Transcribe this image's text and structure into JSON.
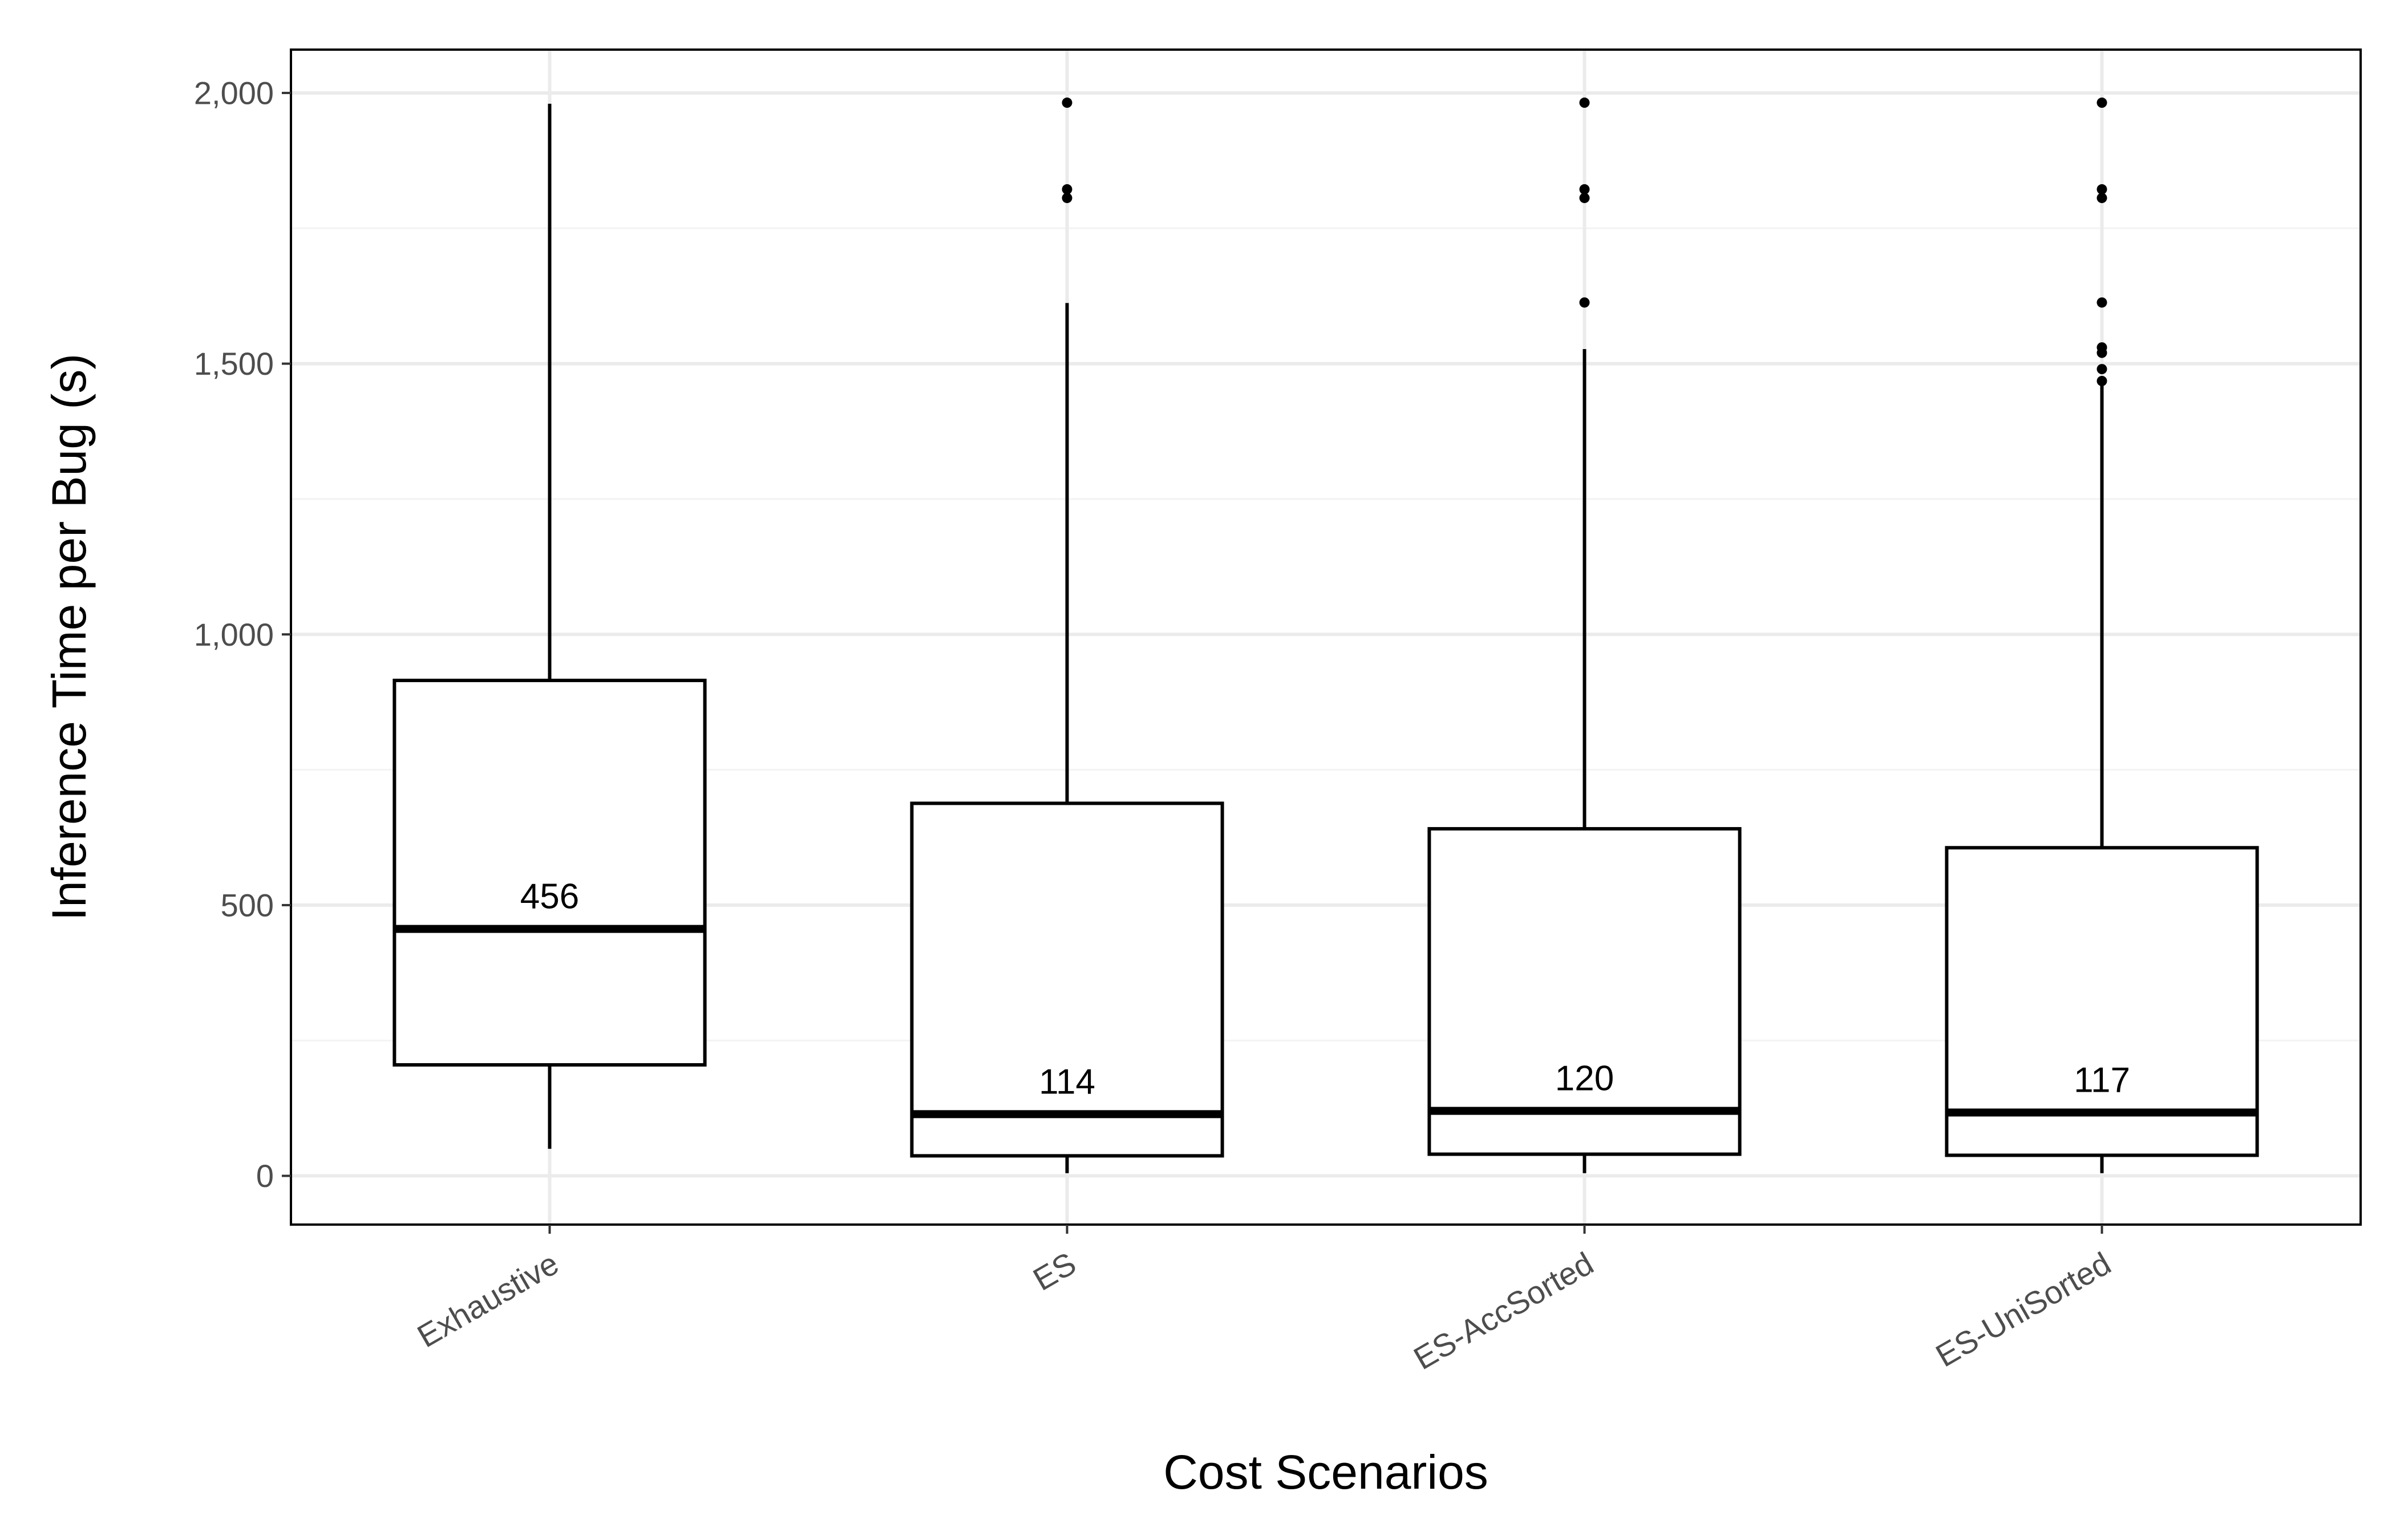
{
  "chart_data": {
    "type": "boxplot",
    "title": "",
    "xlabel": "Cost Scenarios",
    "ylabel": "Inference Time per Bug (s)",
    "ylim": [
      -90,
      2080
    ],
    "y_ticks": [
      {
        "value": 0,
        "label": "0"
      },
      {
        "value": 500,
        "label": "500"
      },
      {
        "value": 1000,
        "label": "1,000"
      },
      {
        "value": 1500,
        "label": "1,500"
      },
      {
        "value": 2000,
        "label": "2,000"
      }
    ],
    "y_minor_gridlines": [
      250,
      750,
      1250,
      1750
    ],
    "grid": true,
    "categories": [
      "Exhaustive",
      "ES",
      "ES-AccSorted",
      "ES-UniSorted"
    ],
    "boxes": [
      {
        "name": "Exhaustive",
        "whisker_low": 50,
        "q1": 205,
        "median": 456,
        "q3": 915,
        "whisker_high": 1980,
        "median_label": "456",
        "outliers": []
      },
      {
        "name": "ES",
        "whisker_low": 5,
        "q1": 37,
        "median": 114,
        "q3": 688,
        "whisker_high": 1612,
        "median_label": "114",
        "outliers": [
          1806,
          1822,
          1982
        ]
      },
      {
        "name": "ES-AccSorted",
        "whisker_low": 5,
        "q1": 40,
        "median": 120,
        "q3": 641,
        "whisker_high": 1527,
        "median_label": "120",
        "outliers": [
          1613,
          1806,
          1822,
          1982
        ]
      },
      {
        "name": "ES-UniSorted",
        "whisker_low": 5,
        "q1": 38,
        "median": 117,
        "q3": 606,
        "whisker_high": 1462,
        "median_label": "117",
        "outliers": [
          1468,
          1490,
          1520,
          1530,
          1613,
          1806,
          1822,
          1982
        ]
      }
    ],
    "colors": {
      "box_fill": "#ffffff",
      "box_stroke": "#000000",
      "grid_major": "#ebebeb",
      "grid_minor": "#f3f3f3",
      "panel_border": "#000000",
      "tick_label": "#4d4d4d"
    }
  }
}
